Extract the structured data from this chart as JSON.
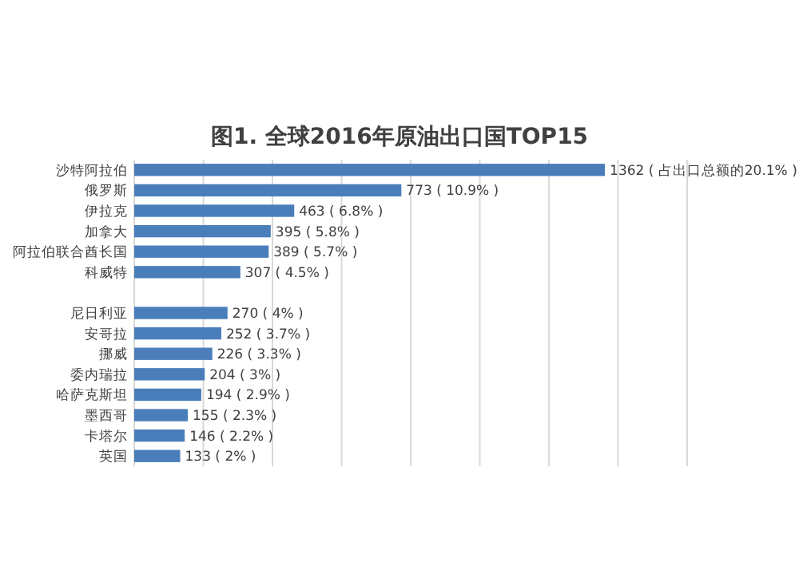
{
  "chart_data": {
    "type": "bar",
    "orientation": "horizontal",
    "title": "图1. 全球2016年原油出口国TOP15",
    "categories": [
      "沙特阿拉伯",
      "俄罗斯",
      "伊拉克",
      "加拿大",
      "阿拉伯联合酋长国",
      "科威特",
      null,
      "尼日利亚",
      "安哥拉",
      "挪威",
      "委内瑞拉",
      "哈萨克斯坦",
      "墨西哥",
      "卡塔尔",
      "英国"
    ],
    "values": [
      1362,
      773,
      463,
      395,
      389,
      307,
      null,
      270,
      252,
      226,
      204,
      194,
      155,
      146,
      133
    ],
    "value_labels": [
      "1362 ( 占出口总额的20.1% )",
      "773 ( 10.9% )",
      "463 ( 6.8% )",
      "395 ( 5.8% )",
      "389 ( 5.7% )",
      "307 ( 4.5% )",
      null,
      "270 ( 4% )",
      "252 ( 3.7% )",
      "226 ( 3.3% )",
      "204 ( 3% )",
      "194 ( 2.9% )",
      "155 ( 2.3% )",
      "146 ( 2.2% )",
      "133 ( 2% )"
    ],
    "color": "#4a7ebb",
    "xlim": [
      0,
      1600
    ],
    "xticks": [
      {
        "value": 0,
        "label": null
      },
      {
        "value": 200,
        "label": null
      },
      {
        "value": 400,
        "label": null
      },
      {
        "value": 600,
        "label": null
      },
      {
        "value": 800,
        "label": null
      },
      {
        "value": 1000,
        "label": null
      },
      {
        "value": 1200,
        "label": null
      },
      {
        "value": 1400,
        "label": null
      },
      {
        "value": 1600,
        "label": null
      }
    ],
    "grid": "x",
    "tick_labels": "y"
  }
}
